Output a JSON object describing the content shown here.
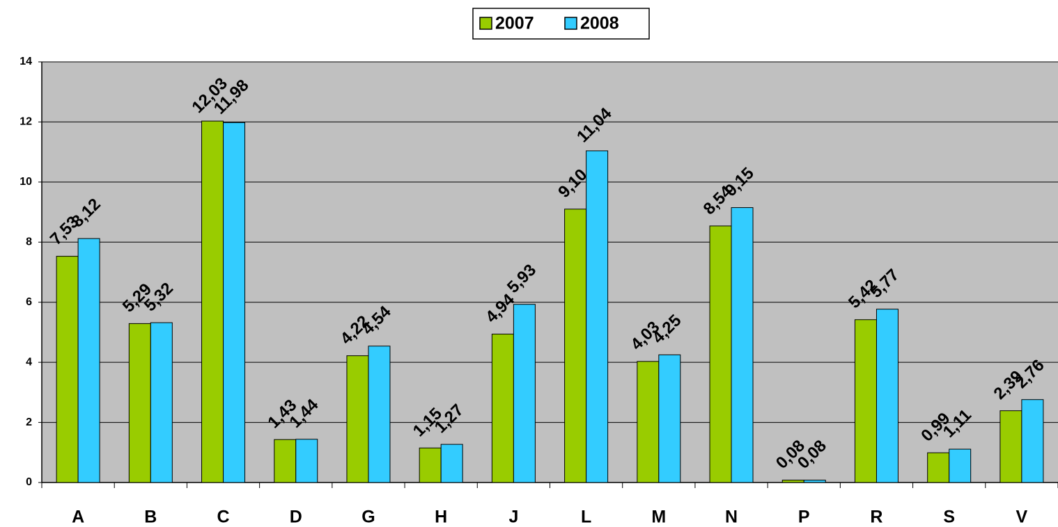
{
  "chart_data": {
    "type": "bar",
    "categories": [
      "A",
      "B",
      "C",
      "D",
      "G",
      "H",
      "J",
      "L",
      "M",
      "N",
      "P",
      "R",
      "S",
      "V"
    ],
    "series": [
      {
        "name": "2007",
        "color": "#99cc00",
        "values": [
          7.53,
          5.29,
          12.03,
          1.43,
          4.22,
          1.15,
          4.94,
          9.1,
          4.03,
          8.54,
          0.08,
          5.42,
          0.99,
          2.39
        ],
        "value_labels": [
          "7,53",
          "5,29",
          "12,03",
          "1,43",
          "4,22",
          "1,15",
          "4,94",
          "9,10",
          "4,03",
          "8,54",
          "0,08",
          "5,42",
          "0,99",
          "2,39"
        ]
      },
      {
        "name": "2008",
        "color": "#33ccff",
        "values": [
          8.12,
          5.32,
          11.98,
          1.44,
          4.54,
          1.27,
          5.93,
          11.04,
          4.25,
          9.15,
          0.08,
          5.77,
          1.11,
          2.76
        ],
        "value_labels": [
          "8,12",
          "5,32",
          "11,98",
          "1,44",
          "4,54",
          "1,27",
          "5,93",
          "11,04",
          "4,25",
          "9,15",
          "0,08",
          "5,77",
          "1,11",
          "2,76"
        ]
      }
    ],
    "ylim": [
      0,
      14
    ],
    "yticks": [
      0,
      2,
      4,
      6,
      8,
      10,
      12,
      14
    ],
    "grid": true,
    "legend": "top"
  }
}
